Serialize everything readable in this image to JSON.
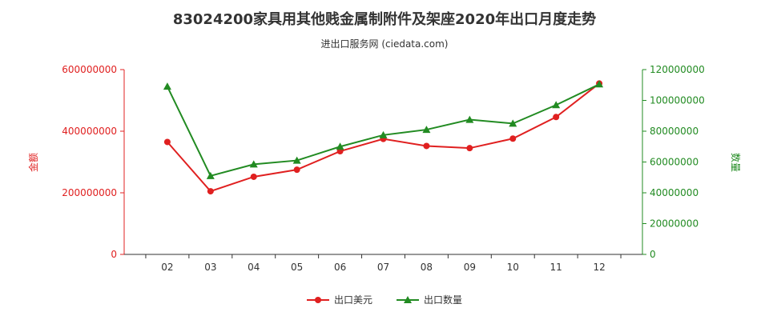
{
  "title": "83024200家具用其他贱金属制附件及架座2020年出口月度走势",
  "subtitle": "进出口服务网 (ciedata.com)",
  "colors": {
    "amount": "#e02020",
    "quantity": "#228b22",
    "axis": "#333333",
    "grid": "#dddddd"
  },
  "chart_data": {
    "type": "line",
    "categories": [
      "02",
      "03",
      "04",
      "05",
      "06",
      "07",
      "08",
      "09",
      "10",
      "11",
      "12"
    ],
    "y_left": {
      "label": "金额",
      "ylim": [
        0,
        600000000
      ],
      "ticks": [
        "0",
        "200000000",
        "400000000",
        "600000000"
      ]
    },
    "y_right": {
      "label": "数量",
      "ylim": [
        0,
        120000000
      ],
      "ticks": [
        "0",
        "20000000",
        "40000000",
        "60000000",
        "80000000",
        "100000000",
        "120000000"
      ]
    },
    "series": [
      {
        "name": "出口美元",
        "axis": "left",
        "values": [
          365000000,
          205000000,
          252000000,
          275000000,
          335000000,
          375000000,
          352000000,
          345000000,
          376000000,
          446000000,
          555000000
        ]
      },
      {
        "name": "出口数量",
        "axis": "right",
        "values": [
          109000000,
          51000000,
          58500000,
          61000000,
          70000000,
          77500000,
          81000000,
          87500000,
          85000000,
          97000000,
          110500000
        ]
      }
    ],
    "grid": false,
    "legend_position": "bottom"
  }
}
